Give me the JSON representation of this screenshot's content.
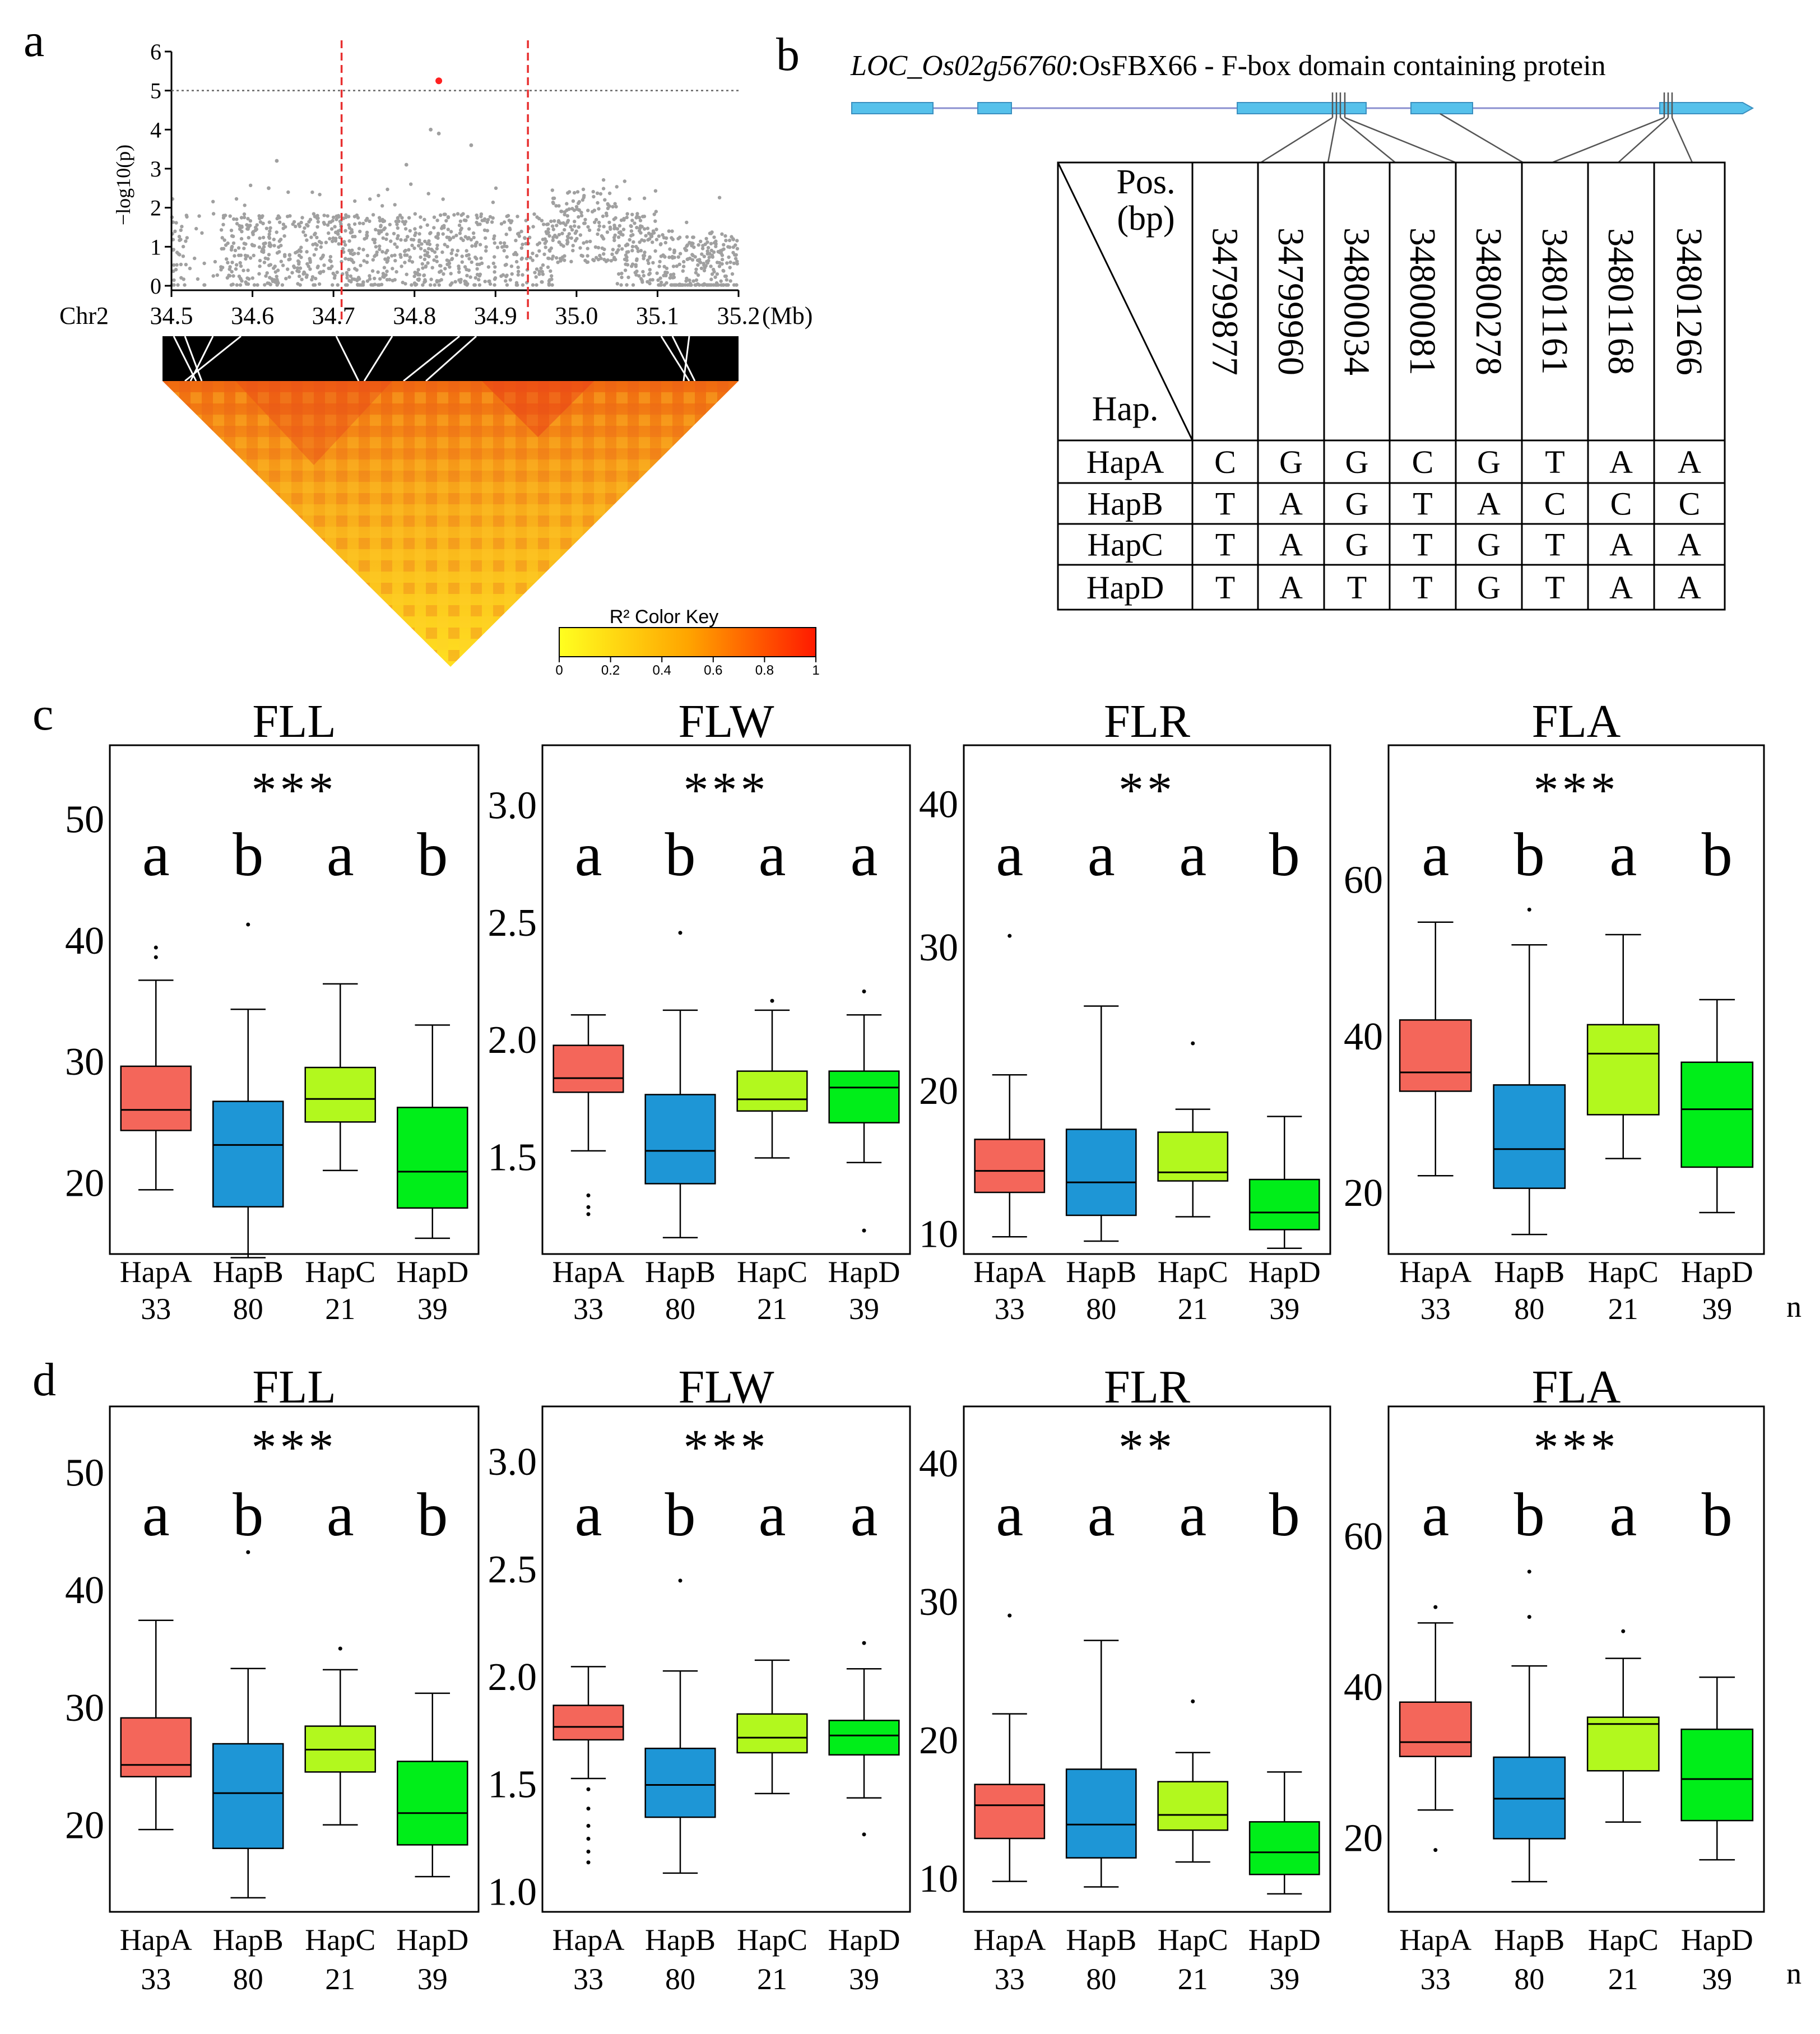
{
  "panel_labels": {
    "a": "a",
    "b": "b",
    "c": "c",
    "d": "d"
  },
  "colors": {
    "HapA": "#F4665A",
    "HapB": "#1E96D6",
    "HapC": "#B2F81E",
    "HapD": "#00EE19",
    "exon": "#56C1EB",
    "manhattan_point": "#A0A0A0",
    "lead_snp": "#FF2020",
    "window_line": "#E83030"
  },
  "panel_a": {
    "ylabel": "−log10(p)",
    "chr_label": "Chr2",
    "unit": "(Mb)",
    "x_ticks": [
      "34.5",
      "34.6",
      "34.7",
      "34.8",
      "34.9",
      "35.0",
      "35.1",
      "35.2"
    ],
    "y_ticks": [
      "0",
      "1",
      "2",
      "3",
      "4",
      "5",
      "6"
    ],
    "threshold": 5,
    "window_start_mb": 34.71,
    "window_end_mb": 34.94,
    "lead_snp": {
      "pos_mb": 34.83,
      "logp": 5.25
    },
    "color_key_title": "R² Color Key",
    "color_key_ticks": [
      "0",
      "0.2",
      "0.4",
      "0.6",
      "0.8",
      "1"
    ]
  },
  "panel_b": {
    "gene_id": "LOC_Os02g56760",
    "gene_desc": ":OsFBX66 - F-box domain containing protein",
    "header_pos": "Pos.",
    "header_bp": "(bp)",
    "header_hap": "Hap.",
    "positions": [
      "34799877",
      "34799960",
      "34800034",
      "34800081",
      "34800278",
      "34801161",
      "34801168",
      "34801266"
    ],
    "rows": [
      {
        "name": "HapA",
        "alleles": [
          "C",
          "G",
          "G",
          "C",
          "G",
          "T",
          "A",
          "A"
        ]
      },
      {
        "name": "HapB",
        "alleles": [
          "T",
          "A",
          "G",
          "T",
          "A",
          "C",
          "C",
          "C"
        ]
      },
      {
        "name": "HapC",
        "alleles": [
          "T",
          "A",
          "G",
          "T",
          "G",
          "T",
          "A",
          "A"
        ]
      },
      {
        "name": "HapD",
        "alleles": [
          "T",
          "A",
          "T",
          "T",
          "G",
          "T",
          "A",
          "A"
        ]
      }
    ]
  },
  "chart_data": [
    {
      "type": "boxplot",
      "panel": "c",
      "title": "FLL",
      "significance": "***",
      "letters": [
        "a",
        "b",
        "a",
        "b"
      ],
      "categories": [
        "HapA",
        "HapB",
        "HapC",
        "HapD"
      ],
      "n": [
        "33",
        "80",
        "21",
        "39"
      ],
      "yticks": [
        "20",
        "30",
        "40",
        "50"
      ],
      "ylim": [
        14,
        56
      ],
      "boxes": [
        {
          "low": 19.3,
          "q1": 24.2,
          "med": 25.9,
          "q3": 29.5,
          "high": 36.6,
          "outliers": [
            38.5,
            39.3
          ]
        },
        {
          "low": 13.7,
          "q1": 17.9,
          "med": 23.0,
          "q3": 26.6,
          "high": 34.2,
          "outliers": [
            41.2
          ]
        },
        {
          "low": 20.9,
          "q1": 24.9,
          "med": 26.8,
          "q3": 29.4,
          "high": 36.3,
          "outliers": []
        },
        {
          "low": 15.3,
          "q1": 17.8,
          "med": 20.8,
          "q3": 26.1,
          "high": 32.9,
          "outliers": []
        }
      ]
    },
    {
      "type": "boxplot",
      "panel": "c",
      "title": "FLW",
      "significance": "***",
      "letters": [
        "a",
        "b",
        "a",
        "a"
      ],
      "categories": [
        "HapA",
        "HapB",
        "HapC",
        "HapD"
      ],
      "n": [
        "33",
        "80",
        "21",
        "39"
      ],
      "yticks": [
        "1.5",
        "2.0",
        "2.5",
        "3.0"
      ],
      "ylim": [
        1.08,
        3.25
      ],
      "boxes": [
        {
          "low": 1.52,
          "q1": 1.77,
          "med": 1.83,
          "q3": 1.97,
          "high": 2.1,
          "outliers": [
            1.25,
            1.28,
            1.33
          ]
        },
        {
          "low": 1.15,
          "q1": 1.38,
          "med": 1.52,
          "q3": 1.76,
          "high": 2.12,
          "outliers": [
            2.45
          ]
        },
        {
          "low": 1.49,
          "q1": 1.69,
          "med": 1.74,
          "q3": 1.86,
          "high": 2.12,
          "outliers": [
            2.16
          ]
        },
        {
          "low": 1.47,
          "q1": 1.64,
          "med": 1.79,
          "q3": 1.86,
          "high": 2.1,
          "outliers": [
            1.18,
            2.2
          ]
        }
      ]
    },
    {
      "type": "boxplot",
      "panel": "c",
      "title": "FLR",
      "significance": "**",
      "letters": [
        "a",
        "a",
        "a",
        "b"
      ],
      "categories": [
        "HapA",
        "HapB",
        "HapC",
        "HapD"
      ],
      "n": [
        "33",
        "80",
        "21",
        "39"
      ],
      "yticks": [
        "10",
        "20",
        "30",
        "40"
      ],
      "ylim": [
        8.5,
        44
      ],
      "boxes": [
        {
          "low": 9.7,
          "q1": 12.8,
          "med": 14.3,
          "q3": 16.5,
          "high": 21.0,
          "outliers": [
            30.7
          ]
        },
        {
          "low": 9.4,
          "q1": 11.2,
          "med": 13.5,
          "q3": 17.2,
          "high": 25.8,
          "outliers": []
        },
        {
          "low": 11.1,
          "q1": 13.6,
          "med": 14.2,
          "q3": 17.0,
          "high": 18.6,
          "outliers": [
            23.2
          ]
        },
        {
          "low": 8.9,
          "q1": 10.2,
          "med": 11.4,
          "q3": 13.7,
          "high": 18.1,
          "outliers": []
        }
      ]
    },
    {
      "type": "boxplot",
      "panel": "c",
      "title": "FLA",
      "significance": "***",
      "letters": [
        "a",
        "b",
        "a",
        "b"
      ],
      "categories": [
        "HapA",
        "HapB",
        "HapC",
        "HapD"
      ],
      "n": [
        "33",
        "80",
        "21",
        "39"
      ],
      "yticks": [
        "20",
        "40",
        "60"
      ],
      "ylim": [
        12,
        77
      ],
      "boxes": [
        {
          "low": 22.0,
          "q1": 32.8,
          "med": 35.2,
          "q3": 41.9,
          "high": 54.4,
          "outliers": []
        },
        {
          "low": 14.5,
          "q1": 20.4,
          "med": 25.4,
          "q3": 33.6,
          "high": 51.5,
          "outliers": [
            56.0
          ]
        },
        {
          "low": 24.2,
          "q1": 29.8,
          "med": 37.6,
          "q3": 41.3,
          "high": 52.8,
          "outliers": []
        },
        {
          "low": 17.3,
          "q1": 23.1,
          "med": 30.5,
          "q3": 36.5,
          "high": 44.5,
          "outliers": []
        }
      ]
    },
    {
      "type": "boxplot",
      "panel": "d",
      "title": "FLL",
      "significance": "***",
      "letters": [
        "a",
        "b",
        "a",
        "b"
      ],
      "categories": [
        "HapA",
        "HapB",
        "HapC",
        "HapD"
      ],
      "n": [
        "33",
        "80",
        "21",
        "39"
      ],
      "yticks": [
        "20",
        "30",
        "40",
        "50"
      ],
      "ylim": [
        12.5,
        55.5
      ],
      "boxes": [
        {
          "low": 19.5,
          "q1": 24.0,
          "med": 25.0,
          "q3": 29.0,
          "high": 37.3,
          "outliers": []
        },
        {
          "low": 13.7,
          "q1": 17.9,
          "med": 22.6,
          "q3": 26.8,
          "high": 33.2,
          "outliers": [
            43.1
          ]
        },
        {
          "low": 19.9,
          "q1": 24.4,
          "med": 26.3,
          "q3": 28.3,
          "high": 33.1,
          "outliers": [
            34.9
          ]
        },
        {
          "low": 15.5,
          "q1": 18.2,
          "med": 20.9,
          "q3": 25.3,
          "high": 31.1,
          "outliers": []
        }
      ]
    },
    {
      "type": "boxplot",
      "panel": "d",
      "title": "FLW",
      "significance": "***",
      "letters": [
        "a",
        "b",
        "a",
        "a"
      ],
      "categories": [
        "HapA",
        "HapB",
        "HapC",
        "HapD"
      ],
      "n": [
        "33",
        "80",
        "21",
        "39"
      ],
      "yticks": [
        "1.0",
        "1.5",
        "2.0",
        "2.5",
        "3.0"
      ],
      "ylim": [
        0.9,
        3.25
      ],
      "boxes": [
        {
          "low": 1.52,
          "q1": 1.7,
          "med": 1.76,
          "q3": 1.86,
          "high": 2.04,
          "outliers": [
            1.13,
            1.18,
            1.24,
            1.3,
            1.38,
            1.47
          ]
        },
        {
          "low": 1.08,
          "q1": 1.34,
          "med": 1.49,
          "q3": 1.66,
          "high": 2.02,
          "outliers": [
            2.44
          ]
        },
        {
          "low": 1.45,
          "q1": 1.64,
          "med": 1.71,
          "q3": 1.82,
          "high": 2.07,
          "outliers": []
        },
        {
          "low": 1.43,
          "q1": 1.63,
          "med": 1.72,
          "q3": 1.79,
          "high": 2.03,
          "outliers": [
            1.26,
            2.15
          ]
        }
      ]
    },
    {
      "type": "boxplot",
      "panel": "d",
      "title": "FLR",
      "significance": "**",
      "letters": [
        "a",
        "a",
        "a",
        "b"
      ],
      "categories": [
        "HapA",
        "HapB",
        "HapC",
        "HapD"
      ],
      "n": [
        "33",
        "80",
        "21",
        "39"
      ],
      "yticks": [
        "10",
        "20",
        "30",
        "40"
      ],
      "ylim": [
        7.5,
        44
      ],
      "boxes": [
        {
          "low": 9.7,
          "q1": 12.8,
          "med": 15.2,
          "q3": 16.7,
          "high": 21.8,
          "outliers": [
            28.9
          ]
        },
        {
          "low": 9.3,
          "q1": 11.4,
          "med": 13.8,
          "q3": 17.8,
          "high": 27.1,
          "outliers": []
        },
        {
          "low": 11.1,
          "q1": 13.4,
          "med": 14.5,
          "q3": 16.9,
          "high": 19.0,
          "outliers": [
            22.7
          ]
        },
        {
          "low": 8.8,
          "q1": 10.2,
          "med": 11.8,
          "q3": 14.0,
          "high": 17.6,
          "outliers": []
        }
      ]
    },
    {
      "type": "boxplot",
      "panel": "d",
      "title": "FLA",
      "significance": "***",
      "letters": [
        "a",
        "b",
        "a",
        "b"
      ],
      "categories": [
        "HapA",
        "HapB",
        "HapC",
        "HapD"
      ],
      "n": [
        "33",
        "80",
        "21",
        "39"
      ],
      "yticks": [
        "20",
        "40",
        "60"
      ],
      "ylim": [
        10,
        77
      ],
      "boxes": [
        {
          "low": 23.5,
          "q1": 30.6,
          "med": 32.5,
          "q3": 37.8,
          "high": 48.3,
          "outliers": [
            18.2,
            50.4
          ]
        },
        {
          "low": 14.0,
          "q1": 19.7,
          "med": 25.0,
          "q3": 30.5,
          "high": 42.6,
          "outliers": [
            49.1,
            55.1
          ]
        },
        {
          "low": 21.9,
          "q1": 28.7,
          "med": 34.9,
          "q3": 35.8,
          "high": 43.6,
          "outliers": [
            47.2
          ]
        },
        {
          "low": 16.9,
          "q1": 22.1,
          "med": 27.6,
          "q3": 34.2,
          "high": 41.1,
          "outliers": []
        }
      ]
    }
  ]
}
